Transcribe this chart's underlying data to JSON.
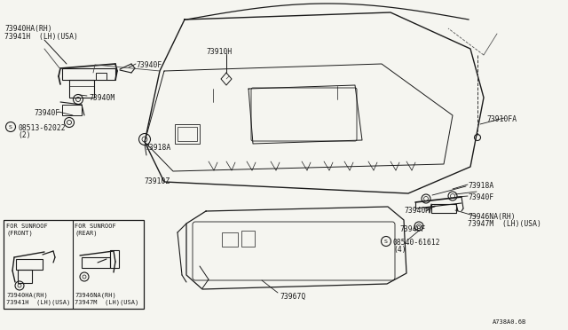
{
  "bg_color": "#f5f5f0",
  "line_color": "#1a1a1a",
  "diagram_id": "A738A0.6B",
  "labels": {
    "top_left_1": "73940HA(RH)",
    "top_left_2": "73941H  (LH)(USA)",
    "part_73910H": "73910H",
    "part_73940F_tl": "73940F",
    "part_73940M": "73940M",
    "part_73940F_bl": "73940F",
    "part_08513": "08513-62022",
    "part_08513_2": "(2)",
    "part_73918A_left": "73918A",
    "part_73910Z": "73910Z",
    "part_73910FA": "73910FA",
    "part_73918A_right": "73918A",
    "part_73940F_right": "73940F",
    "part_73940M_right": "73940M",
    "part_73940F_right2": "73940F",
    "part_73946NA_1": "73946NA(RH)",
    "part_73946NA_2": "73947M  (LH)(USA)",
    "part_08540": "08540-61612",
    "part_08540_4": "(4)",
    "sunroof_front_title": "FOR SUNROOF",
    "sunroof_front_sub": "(FRONT)",
    "sunroof_rear_title": "FOR SUNROOF",
    "sunroof_rear_sub": "(REAR)",
    "sunroof_front_p1": "73940HA(RH)",
    "sunroof_front_p2": "73941H  (LH)(USA)",
    "sunroof_rear_p1": "73946NA(RH)",
    "sunroof_rear_p2": "73947M  (LH)(USA)",
    "part_73967Q": "73967Q"
  },
  "fontsize_tiny": 5.0,
  "fontsize_small": 5.8,
  "fontsize_med": 6.5
}
